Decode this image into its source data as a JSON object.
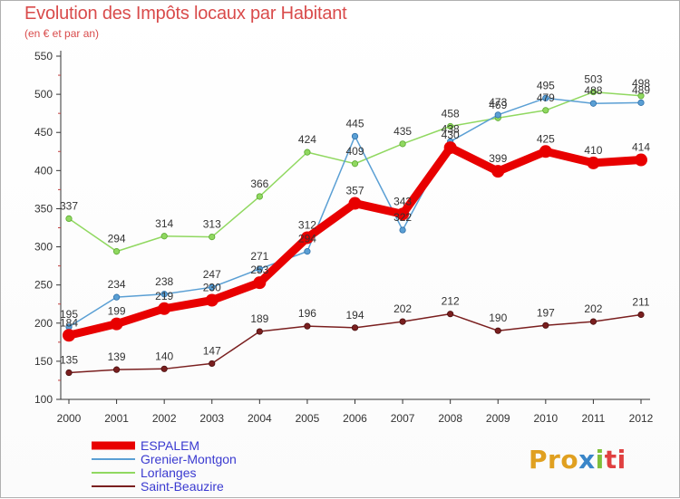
{
  "title": "Evolution des Impôts locaux par Habitant",
  "subtitle": "(en € et par an)",
  "logo": {
    "part1": "Pro",
    "part2": "x",
    "part3": "i",
    "part4": "ti"
  },
  "chart_data": {
    "type": "line",
    "title": "Evolution des Impôts locaux par Habitant",
    "subtitle": "(en € et par an)",
    "xlabel": "",
    "ylabel": "",
    "x": [
      "2000",
      "2001",
      "2002",
      "2003",
      "2004",
      "2005",
      "2006",
      "2007",
      "2008",
      "2009",
      "2010",
      "2011",
      "2012"
    ],
    "ylim": [
      100,
      550
    ],
    "yticks": [
      100,
      150,
      200,
      250,
      300,
      350,
      400,
      450,
      500,
      550
    ],
    "grid": false,
    "legend_position": "bottom-left",
    "series": [
      {
        "name": "ESPALEM",
        "color": "#e80000",
        "values": [
          184,
          199,
          219,
          230,
          253,
          312,
          357,
          343,
          430,
          399,
          425,
          410,
          414
        ]
      },
      {
        "name": "Grenier-Montgon",
        "color": "#5a9fd4",
        "values": [
          195,
          234,
          238,
          247,
          271,
          294,
          445,
          322,
          438,
          473,
          495,
          488,
          489
        ]
      },
      {
        "name": "Lorlanges",
        "color": "#90d860",
        "values": [
          337,
          294,
          314,
          313,
          366,
          424,
          409,
          435,
          458,
          469,
          479,
          503,
          498
        ]
      },
      {
        "name": "Saint-Beauzire",
        "color": "#7a1f1f",
        "values": [
          135,
          139,
          140,
          147,
          189,
          196,
          194,
          202,
          212,
          190,
          197,
          202,
          211
        ]
      }
    ]
  }
}
